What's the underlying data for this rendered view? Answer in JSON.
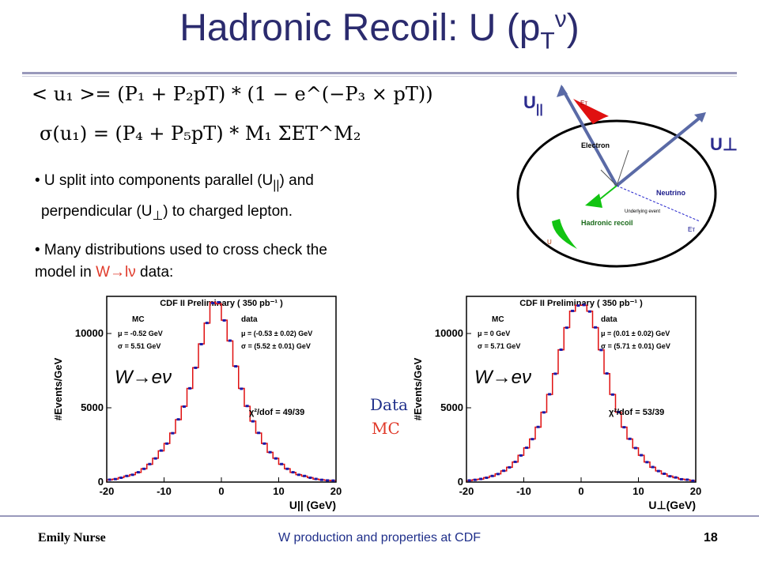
{
  "slide": {
    "title": "Hadronic Recoil: U (p",
    "title_sub": "T",
    "title_sup": "ν",
    "title_close": ")",
    "eq1": "< u₁ >= (P₁ + P₂pT) * (1 − e^(−P₃ × pT))",
    "eq2": "σ(u₁) = (P₄ + P₅pT) * M₁ ΣET^M₂",
    "bullet1_line1": "• U split into components parallel (U",
    "bullet1_sub1": "||",
    "bullet1_end1": ") and",
    "bullet1_line2": "perpendicular (U",
    "bullet1_sub2": "⊥",
    "bullet1_end2": ") to charged lepton.",
    "bullet2_line1": "• Many distributions used to cross check the",
    "bullet2_line2": "model in",
    "bullet2_red": "W→lν",
    "bullet2_end": "data:",
    "legend_data": "Data",
    "legend_mc": "MC",
    "footer_left": "Emily Nurse",
    "footer_center": "W production and properties at CDF",
    "footer_page": "18"
  },
  "diagram": {
    "u_par": "U",
    "u_par_sub": "||",
    "u_perp": "U⊥",
    "labels": [
      "Electron",
      "Neutrino",
      "Hadronic recoil",
      "Underlying event",
      "Eᴛ",
      "Eᴛ",
      "U"
    ]
  },
  "chart_data": [
    {
      "type": "bar",
      "title": "CDF II Preliminary ( 350 pb⁻¹ )",
      "xlabel": "U|| (GeV)",
      "ylabel": "#Events/GeV",
      "xlim": [
        -20,
        20
      ],
      "ylim": [
        0,
        12500
      ],
      "xticks": [
        -20,
        -10,
        0,
        10,
        20
      ],
      "yticks": [
        0,
        5000,
        10000
      ],
      "mc_header": "MC",
      "data_header": "data",
      "mc_mu": "μ = -0.52 GeV",
      "mc_sigma": "σ = 5.51 GeV",
      "data_mu": "μ = (-0.53 ± 0.02) GeV",
      "data_sigma": "σ = (5.52 ± 0.01) GeV",
      "chi2": "χ²/dof = 49/39",
      "process": "W→eν",
      "x": [
        -19.5,
        -18.5,
        -17.5,
        -16.5,
        -15.5,
        -14.5,
        -13.5,
        -12.5,
        -11.5,
        -10.5,
        -9.5,
        -8.5,
        -7.5,
        -6.5,
        -5.5,
        -4.5,
        -3.5,
        -2.5,
        -1.5,
        -0.5,
        0.5,
        1.5,
        2.5,
        3.5,
        4.5,
        5.5,
        6.5,
        7.5,
        8.5,
        9.5,
        10.5,
        11.5,
        12.5,
        13.5,
        14.5,
        15.5,
        16.5,
        17.5,
        18.5,
        19.5
      ],
      "series": [
        {
          "name": "MC",
          "values": [
            150,
            200,
            300,
            400,
            500,
            650,
            900,
            1200,
            1600,
            2100,
            2600,
            3300,
            4200,
            5100,
            6300,
            7700,
            9300,
            10700,
            12100,
            12000,
            10900,
            9500,
            7800,
            6300,
            5100,
            4100,
            3300,
            2600,
            2000,
            1600,
            1200,
            900,
            650,
            500,
            400,
            300,
            200,
            150,
            120,
            100
          ]
        },
        {
          "name": "Data",
          "values": [
            160,
            200,
            290,
            410,
            490,
            660,
            890,
            1210,
            1590,
            2120,
            2590,
            3290,
            4220,
            5080,
            6310,
            7690,
            9280,
            10710,
            12050,
            12100,
            10880,
            9520,
            7790,
            6280,
            5120,
            4090,
            3310,
            2590,
            2010,
            1590,
            1210,
            890,
            660,
            490,
            410,
            290,
            210,
            150,
            110,
            100
          ]
        }
      ]
    },
    {
      "type": "bar",
      "title": "CDF II Preliminary ( 350 pb⁻¹ )",
      "xlabel": "U⊥(GeV)",
      "ylabel": "#Events/GeV",
      "xlim": [
        -20,
        20
      ],
      "ylim": [
        0,
        12500
      ],
      "xticks": [
        -20,
        -10,
        0,
        10,
        20
      ],
      "yticks": [
        0,
        5000,
        10000
      ],
      "mc_header": "MC",
      "data_header": "data",
      "mc_mu": "μ = 0 GeV",
      "mc_sigma": "σ = 5.71 GeV",
      "data_mu": "μ = (0.01 ± 0.02) GeV",
      "data_sigma": "σ = (5.71 ± 0.01) GeV",
      "chi2": "χ²/dof = 53/39",
      "process": "W→eν",
      "x": [
        -19.5,
        -18.5,
        -17.5,
        -16.5,
        -15.5,
        -14.5,
        -13.5,
        -12.5,
        -11.5,
        -10.5,
        -9.5,
        -8.5,
        -7.5,
        -6.5,
        -5.5,
        -4.5,
        -3.5,
        -2.5,
        -1.5,
        -0.5,
        0.5,
        1.5,
        2.5,
        3.5,
        4.5,
        5.5,
        6.5,
        7.5,
        8.5,
        9.5,
        10.5,
        11.5,
        12.5,
        13.5,
        14.5,
        15.5,
        16.5,
        17.5,
        18.5,
        19.5
      ],
      "series": [
        {
          "name": "MC",
          "values": [
            100,
            150,
            200,
            300,
            400,
            550,
            750,
            1000,
            1350,
            1800,
            2300,
            2900,
            3700,
            4700,
            5900,
            7300,
            8900,
            10400,
            11500,
            11900,
            11900,
            11500,
            10400,
            8900,
            7300,
            5900,
            4700,
            3700,
            2900,
            2300,
            1800,
            1350,
            1000,
            750,
            550,
            400,
            300,
            200,
            150,
            100
          ]
        },
        {
          "name": "Data",
          "values": [
            110,
            150,
            210,
            290,
            410,
            540,
            760,
            990,
            1360,
            1790,
            2310,
            2890,
            3710,
            4690,
            5910,
            7290,
            8910,
            10390,
            11520,
            11880,
            11920,
            11480,
            10410,
            8890,
            7310,
            5890,
            4710,
            3690,
            2910,
            2290,
            1810,
            1340,
            1010,
            740,
            560,
            390,
            310,
            190,
            160,
            90
          ]
        }
      ]
    }
  ]
}
